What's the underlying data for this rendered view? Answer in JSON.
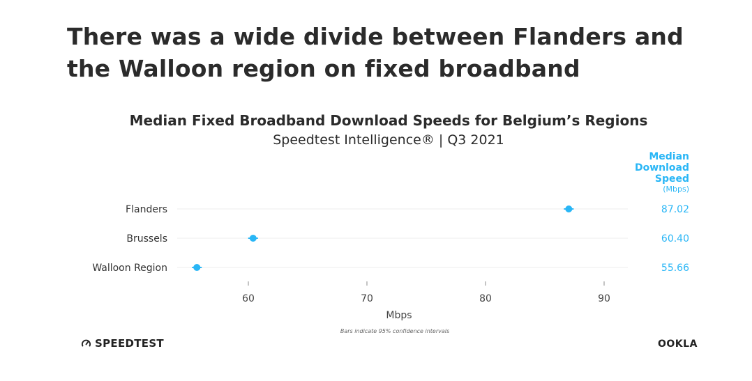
{
  "headline": "There was a wide divide between Flanders and the Walloon region on fixed broadband",
  "brands": {
    "left": "SPEEDTEST",
    "right": "OOKLA"
  },
  "colors": {
    "accent": "#29b6f6",
    "text": "#2b2b2b",
    "grid": "#eeeeee"
  },
  "chart_data": {
    "type": "scatter",
    "title": "Median Fixed Broadband Download Speeds for Belgium’s Regions",
    "subtitle": "Speedtest Intelligence® | Q3 2021",
    "xlabel": "Mbps",
    "xlim": [
      54,
      92
    ],
    "xticks": [
      60,
      70,
      80,
      90
    ],
    "value_header": [
      "Median",
      "Download",
      "Speed"
    ],
    "value_unit": "(Mbps)",
    "categories": [
      "Flanders",
      "Brussels",
      "Walloon Region"
    ],
    "values": [
      87.02,
      60.4,
      55.66
    ],
    "value_labels": [
      "87.02",
      "60.40",
      "55.66"
    ],
    "footnote": "Bars indicate 95% confidence intervals"
  }
}
